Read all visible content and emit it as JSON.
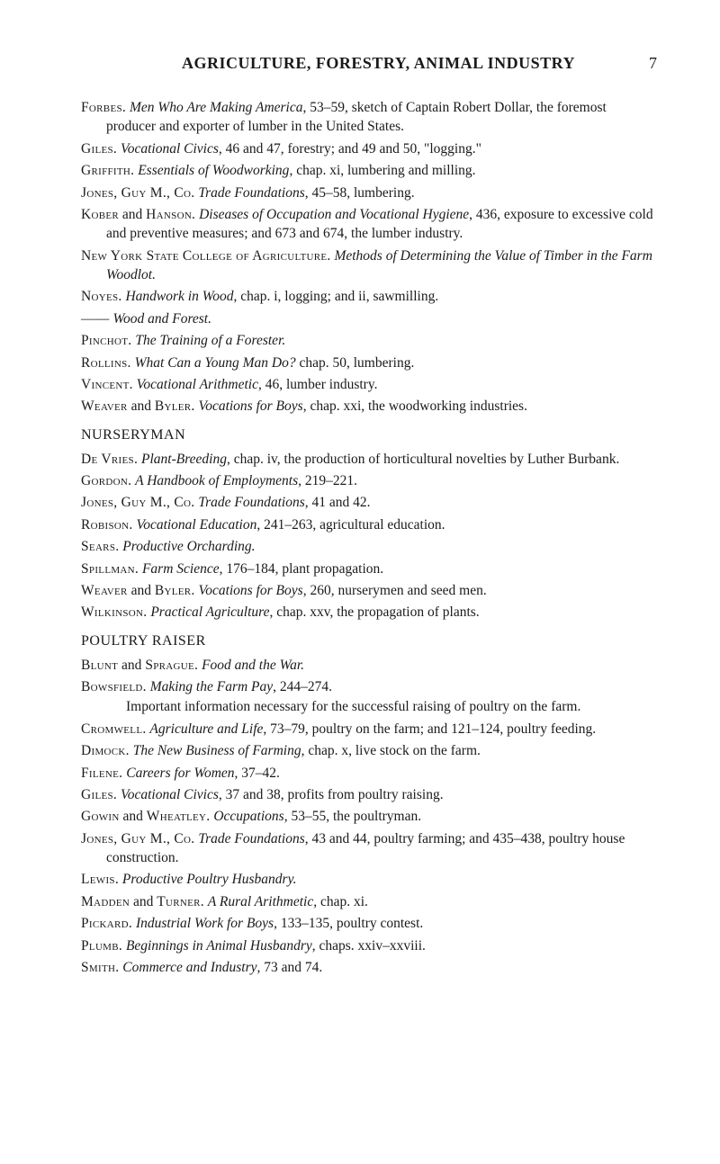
{
  "header": {
    "title": "AGRICULTURE, FORESTRY, ANIMAL INDUSTRY",
    "page_number": "7"
  },
  "sections": [
    {
      "entries": [
        {
          "author": "Forbes.",
          "title": "Men Who Are Making America",
          "rest": ", 53–59, sketch of Captain Robert Dollar, the foremost producer and exporter of lumber in the United States."
        },
        {
          "author": "Giles.",
          "title": "Vocational Civics",
          "rest": ", 46 and 47, forestry; and 49 and 50, \"logging.\""
        },
        {
          "author": "Griffith.",
          "title": "Essentials of Woodworking",
          "rest": ", chap. xi, lumbering and milling."
        },
        {
          "author": "Jones, Guy M., Co.",
          "title": "Trade Foundations",
          "rest": ", 45–58, lumbering."
        },
        {
          "author": "Kober",
          "mid": " and ",
          "author2": "Hanson.",
          "title": "Diseases of Occupation and Vocational Hygiene",
          "rest": ", 436, exposure to excessive cold and preventive measures; and 673 and 674, the lumber industry."
        },
        {
          "author": "New York State College of Agriculture.",
          "title": "Methods of Determining the Value of Timber in the Farm Woodlot.",
          "rest": ""
        },
        {
          "author": "Noyes.",
          "title": "Handwork in Wood",
          "rest": ", chap. i, logging; and ii, sawmilling."
        },
        {
          "author": "——",
          "title": "Wood and Forest.",
          "rest": ""
        },
        {
          "author": "Pinchot.",
          "title": "The Training of a Forester.",
          "rest": ""
        },
        {
          "author": "Rollins.",
          "title": "What Can a Young Man Do?",
          "rest": " chap. 50, lumbering."
        },
        {
          "author": "Vincent.",
          "title": "Vocational Arithmetic",
          "rest": ", 46, lumber industry."
        },
        {
          "author": "Weaver",
          "mid": " and ",
          "author2": "Byler.",
          "title": "Vocations for Boys",
          "rest": ", chap. xxi, the woodworking industries."
        }
      ]
    },
    {
      "heading": "NURSERYMAN",
      "entries": [
        {
          "author": "De Vries.",
          "title": "Plant-Breeding",
          "rest": ", chap. iv, the production of horticultural novelties by Luther Burbank."
        },
        {
          "author": "Gordon.",
          "title": "A Handbook of Employments",
          "rest": ", 219–221."
        },
        {
          "author": "Jones, Guy M., Co.",
          "title": "Trade Foundations",
          "rest": ", 41 and 42."
        },
        {
          "author": "Robison.",
          "title": "Vocational Education",
          "rest": ", 241–263, agricultural education."
        },
        {
          "author": "Sears.",
          "title": "Productive Orcharding.",
          "rest": ""
        },
        {
          "author": "Spillman.",
          "title": "Farm Science",
          "rest": ", 176–184, plant propagation."
        },
        {
          "author": "Weaver",
          "mid": " and ",
          "author2": "Byler.",
          "title": "Vocations for Boys",
          "rest": ", 260, nurserymen and seed men."
        },
        {
          "author": "Wilkinson.",
          "title": "Practical Agriculture",
          "rest": ", chap. xxv, the propagation of plants."
        }
      ]
    },
    {
      "heading": "POULTRY RAISER",
      "entries": [
        {
          "author": "Blunt",
          "mid": " and ",
          "author2": "Sprague.",
          "title": "Food and the War.",
          "rest": ""
        },
        {
          "author": "Bowsfield.",
          "title": "Making the Farm Pay",
          "rest": ", 244–274.",
          "sub": "Important information necessary for the successful raising of poultry on the farm."
        },
        {
          "author": "Cromwell.",
          "title": "Agriculture and Life",
          "rest": ", 73–79, poultry on the farm; and 121–124, poultry feeding."
        },
        {
          "author": "Dimock.",
          "title": "The New Business of Farming",
          "rest": ", chap. x, live stock on the farm."
        },
        {
          "author": "Filene.",
          "title": "Careers for Women",
          "rest": ", 37–42."
        },
        {
          "author": "Giles.",
          "title": "Vocational Civics",
          "rest": ", 37 and 38, profits from poultry raising."
        },
        {
          "author": "Gowin",
          "mid": " and ",
          "author2": "Wheatley.",
          "title": "Occupations",
          "rest": ", 53–55, the poultryman."
        },
        {
          "author": "Jones, Guy M., Co.",
          "title": "Trade Foundations",
          "rest": ", 43 and 44, poultry farming; and 435–438, poultry house construction."
        },
        {
          "author": "Lewis.",
          "title": "Productive Poultry Husbandry.",
          "rest": ""
        },
        {
          "author": "Madden",
          "mid": " and ",
          "author2": "Turner.",
          "title": "A Rural Arithmetic",
          "rest": ", chap. xi."
        },
        {
          "author": "Pickard.",
          "title": "Industrial Work for Boys",
          "rest": ", 133–135, poultry contest."
        },
        {
          "author": "Plumb.",
          "title": "Beginnings in Animal Husbandry",
          "rest": ", chaps. xxiv–xxviii."
        },
        {
          "author": "Smith.",
          "title": "Commerce and Industry",
          "rest": ", 73 and 74."
        }
      ]
    }
  ]
}
